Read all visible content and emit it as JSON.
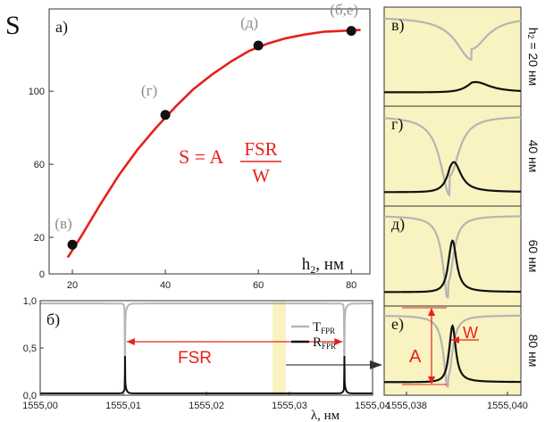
{
  "colors": {
    "fit": "#e8201c",
    "marker": "#111111",
    "transmission": "#b5b5b5",
    "reflection": "#111111",
    "highlight": "#f8f3c0",
    "annotation": "#e8201c",
    "gray_label": "#8a8a8a"
  },
  "chart_data": [
    {
      "id": "a",
      "type": "scatter",
      "panel_label": "а)",
      "y_symbol": "S",
      "xlabel_main": "h",
      "xlabel_sub": "2",
      "xlabel_unit": ", нм",
      "xlim": [
        15,
        84
      ],
      "ylim": [
        0,
        145
      ],
      "x_ticks": [
        20,
        40,
        60,
        80
      ],
      "y_ticks": [
        0,
        20,
        60,
        100
      ],
      "formula": {
        "lhs": "S = A",
        "numerator": "FSR",
        "denominator": "W"
      },
      "points": [
        {
          "x": 20,
          "y": 16,
          "label": "(в)"
        },
        {
          "x": 40,
          "y": 87,
          "label": "(г)"
        },
        {
          "x": 60,
          "y": 125,
          "label": "(д)"
        },
        {
          "x": 80,
          "y": 133,
          "label": "(б,е)"
        }
      ],
      "fit_curve": {
        "x": [
          19,
          22,
          26,
          30,
          34,
          38,
          42,
          46,
          50,
          54,
          58,
          62,
          66,
          70,
          74,
          78,
          82
        ],
        "y": [
          9,
          21,
          38,
          54,
          68,
          80,
          91,
          101,
          109,
          116,
          122,
          126,
          129,
          131,
          132.5,
          133,
          133.5
        ]
      }
    },
    {
      "id": "b",
      "type": "line",
      "panel_label": "б)",
      "xlabel": "λ, нм",
      "xlim": [
        1555.0,
        1555.04
      ],
      "ylim": [
        0,
        1.0
      ],
      "x_tick_labels": [
        "1555,00",
        "1555,01",
        "1555,02",
        "1555,03",
        "1555,04"
      ],
      "x_ticks": [
        1555.0,
        1555.01,
        1555.02,
        1555.03,
        1555.04
      ],
      "y_tick_labels": [
        "0,0",
        "0,5",
        "1,0"
      ],
      "y_ticks": [
        0,
        0.5,
        1.0
      ],
      "resonances": [
        1555.0102,
        1555.0366
      ],
      "annotation": "FSR",
      "highlight_range": [
        1555.0355,
        1555.0378
      ],
      "series": [
        {
          "name": "T",
          "sub": "FPR",
          "kind": "transmission"
        },
        {
          "name": "R",
          "sub": "FPR",
          "kind": "reflection"
        }
      ]
    },
    {
      "id": "zoom",
      "type": "line",
      "x_tick_labels": [
        "1555,038",
        "1555,040"
      ],
      "panels": [
        {
          "panel_label": "в)",
          "side_main": "h",
          "side_sub": "2",
          "side_rest": " = 20 нм",
          "t_min": 0.55,
          "t_width": 0.3,
          "r_peak": 0.12,
          "r_width": 0.7,
          "center": 0.64
        },
        {
          "panel_label": "г)",
          "side_main": "",
          "side_sub": "",
          "side_rest": "40 нм",
          "t_min": 0.2,
          "t_width": 0.18,
          "r_peak": 0.35,
          "r_width": 0.35,
          "center": 0.48
        },
        {
          "panel_label": "д)",
          "side_main": "",
          "side_sub": "",
          "side_rest": "60 нм",
          "t_min": 0.12,
          "t_width": 0.1,
          "r_peak": 0.6,
          "r_width": 0.2,
          "center": 0.47
        },
        {
          "panel_label": "е)",
          "side_main": "",
          "side_sub": "",
          "side_rest": "80 нм",
          "t_min": 0.08,
          "t_width": 0.08,
          "r_peak": 0.75,
          "r_width": 0.16,
          "center": 0.47,
          "annot_A": "A",
          "annot_W": "W"
        }
      ]
    }
  ]
}
